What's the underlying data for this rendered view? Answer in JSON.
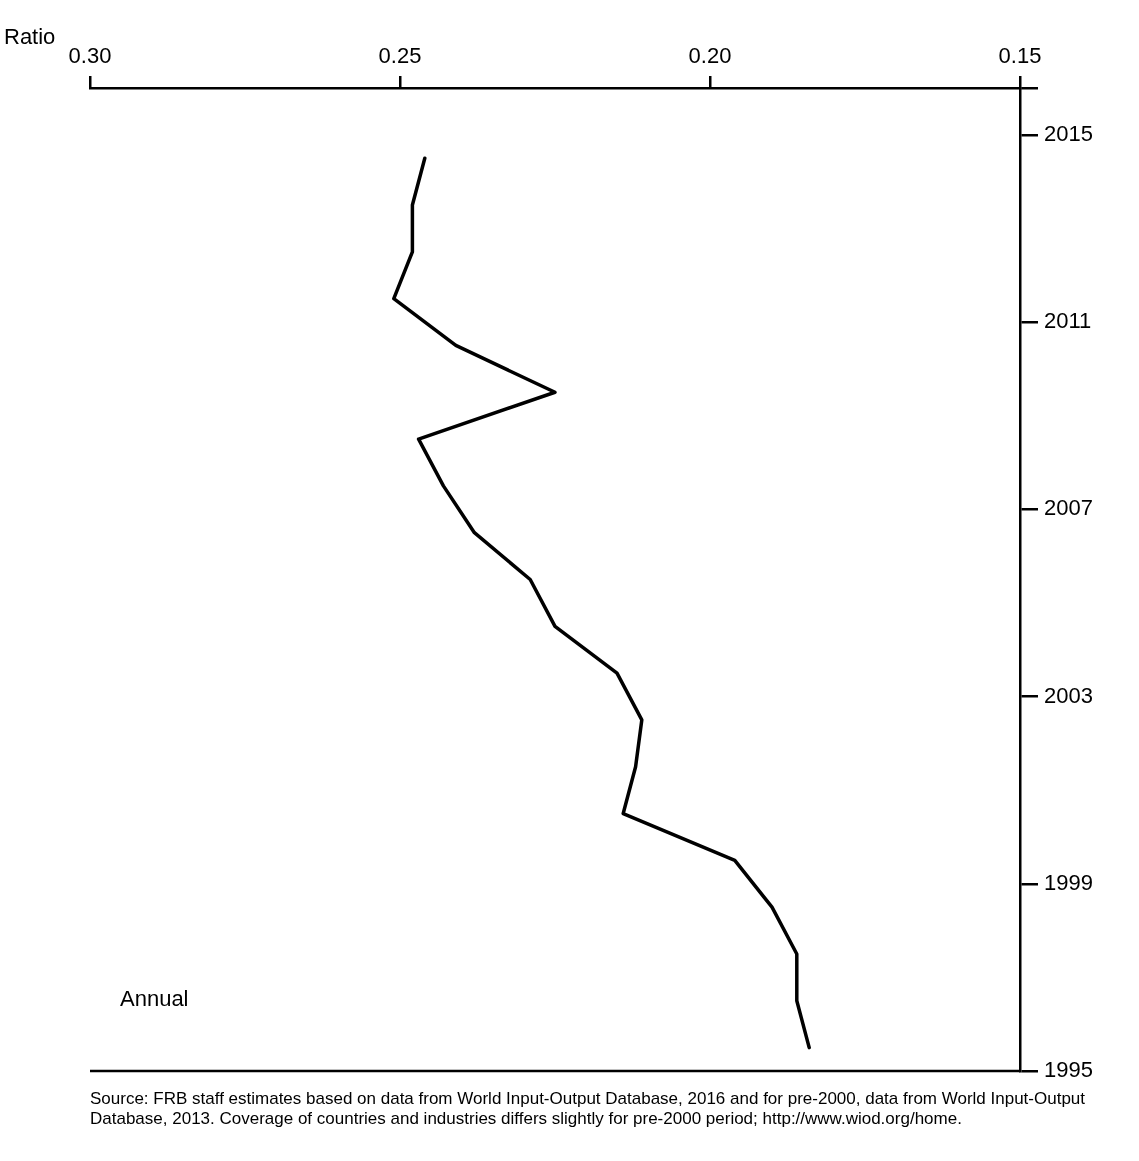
{
  "chart_data": {
    "type": "line",
    "xlabel": "Ratio",
    "annotations": [
      "Annual",
      "Source: FRB staff estimates based on data from World Input-Output Database, 2016 and for pre-2000, data from World Input-Output Database, 2013. Coverage of countries and industries differs slightly for pre-2000 period; http://www.wiod.org/home."
    ],
    "x": [
      0.184,
      0.186,
      0.186,
      0.19,
      0.196,
      0.214,
      0.212,
      0.211,
      0.215,
      0.225,
      0.229,
      0.238,
      0.243,
      0.247,
      0.225,
      0.241,
      0.251,
      0.248,
      0.248,
      0.246
    ],
    "values": [
      1995.5,
      1996.5,
      1997.5,
      1998.5,
      1999.5,
      2000.5,
      2001.5,
      2002.5,
      2003.5,
      2004.5,
      2005.5,
      2006.5,
      2007.5,
      2008.5,
      2009.5,
      2010.5,
      2011.5,
      2012.5,
      2013.5,
      2014.5
    ],
    "color": "#000000",
    "line_style": "solid",
    "marker": "none",
    "grid": false,
    "legend": false,
    "xlim": [
      0.3,
      0.15
    ],
    "xticks": [
      {
        "value": 0.3,
        "label": "0.30"
      },
      {
        "value": 0.25,
        "label": "0.25"
      },
      {
        "value": 0.2,
        "label": "0.20"
      },
      {
        "value": 0.15,
        "label": "0.15"
      }
    ],
    "ylim": [
      1995,
      2016
    ],
    "yticks": [
      1995,
      1999,
      2003,
      2007,
      2011,
      2015,
      {
        "value": 2016,
        "label": null
      }
    ]
  }
}
